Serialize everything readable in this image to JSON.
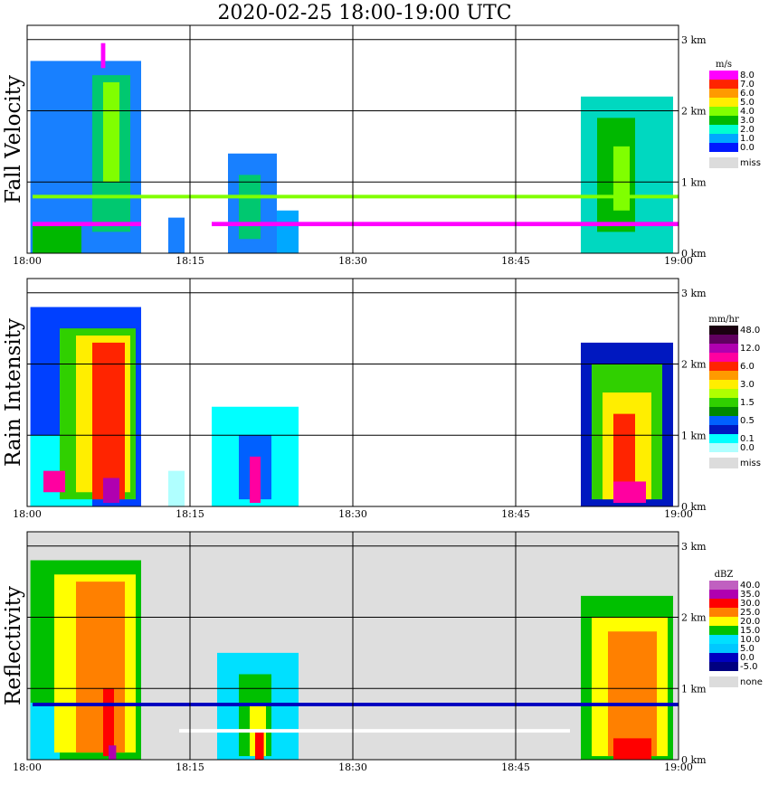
{
  "title": "2020-02-25   18:00-19:00 UTC",
  "chart_data": {
    "type": "heatmap",
    "time_ticks": [
      "18:00",
      "18:15",
      "18:30",
      "18:45",
      "19:00"
    ],
    "height_ticks": [
      "0 km",
      "1 km",
      "2 km",
      "3 km"
    ],
    "height_range_km": [
      0,
      3.2
    ],
    "time_range_min": [
      0,
      60
    ],
    "panels": [
      {
        "label": "Fall Velocity",
        "unit": "m/s",
        "colorbar": [
          {
            "label": "8.0",
            "color": "#ff00ff"
          },
          {
            "label": "7.0",
            "color": "#ff2400"
          },
          {
            "label": "6.0",
            "color": "#ff9a00"
          },
          {
            "label": "5.0",
            "color": "#ffee00"
          },
          {
            "label": "4.0",
            "color": "#80ff00"
          },
          {
            "label": "3.0",
            "color": "#00b800"
          },
          {
            "label": "2.0",
            "color": "#00ffd0"
          },
          {
            "label": "1.0",
            "color": "#00a8ff"
          },
          {
            "label": "0.0",
            "color": "#0018ff"
          }
        ],
        "missing_label": "miss",
        "background": "#ffffff",
        "cells": [
          {
            "t0": 0.3,
            "t1": 10.5,
            "h0": 0.0,
            "h1": 2.7,
            "color": "#1880ff"
          },
          {
            "t0": 6.0,
            "t1": 9.5,
            "h0": 0.3,
            "h1": 2.5,
            "color": "#00c870"
          },
          {
            "t0": 7.0,
            "t1": 8.5,
            "h0": 1.0,
            "h1": 2.4,
            "color": "#80ff00"
          },
          {
            "t0": 0.5,
            "t1": 5.0,
            "h0": 0.0,
            "h1": 0.4,
            "color": "#00b800"
          },
          {
            "t0": 6.8,
            "t1": 7.2,
            "h0": 2.6,
            "h1": 2.95,
            "color": "#ff00ff"
          },
          {
            "t0": 13.0,
            "t1": 14.5,
            "h0": 0.0,
            "h1": 0.5,
            "color": "#1880ff"
          },
          {
            "t0": 18.5,
            "t1": 23.0,
            "h0": 0.0,
            "h1": 1.4,
            "color": "#1880ff"
          },
          {
            "t0": 19.5,
            "t1": 21.5,
            "h0": 0.2,
            "h1": 1.1,
            "color": "#00c870"
          },
          {
            "t0": 23.0,
            "t1": 25.0,
            "h0": 0.0,
            "h1": 0.6,
            "color": "#00a8ff"
          },
          {
            "t0": 51.0,
            "t1": 59.5,
            "h0": 0.0,
            "h1": 2.2,
            "color": "#00d8c0"
          },
          {
            "t0": 52.5,
            "t1": 56.0,
            "h0": 0.3,
            "h1": 1.9,
            "color": "#00b800"
          },
          {
            "t0": 54.0,
            "t1": 55.5,
            "h0": 0.6,
            "h1": 1.5,
            "color": "#80ff00"
          },
          {
            "t0": 0.5,
            "t1": 10.5,
            "h0": 0.38,
            "h1": 0.44,
            "color": "#ff00ff"
          },
          {
            "t0": 17.0,
            "t1": 60.0,
            "h0": 0.38,
            "h1": 0.44,
            "color": "#ff00ff"
          },
          {
            "t0": 0.5,
            "t1": 60.0,
            "h0": 0.77,
            "h1": 0.82,
            "color": "#80ff00"
          }
        ]
      },
      {
        "label": "Rain Intensity",
        "unit": "mm/hr",
        "colorbar": [
          {
            "label": "48.0",
            "color": "#1a0010"
          },
          {
            "label": "",
            "color": "#600060"
          },
          {
            "label": "12.0",
            "color": "#b000b0"
          },
          {
            "label": "",
            "color": "#ff00a0"
          },
          {
            "label": "6.0",
            "color": "#ff2400"
          },
          {
            "label": "",
            "color": "#ff9a00"
          },
          {
            "label": "3.0",
            "color": "#ffee00"
          },
          {
            "label": "",
            "color": "#b0ff00"
          },
          {
            "label": "1.5",
            "color": "#30d000"
          },
          {
            "label": "",
            "color": "#008800"
          },
          {
            "label": "0.5",
            "color": "#0060ff"
          },
          {
            "label": "",
            "color": "#0018c0"
          },
          {
            "label": "0.1",
            "color": "#00ffff"
          },
          {
            "label": "0.0",
            "color": "#b0ffff"
          }
        ],
        "missing_label": "miss",
        "background": "#ffffff",
        "cells": [
          {
            "t0": 0.3,
            "t1": 10.5,
            "h0": 0.0,
            "h1": 2.8,
            "color": "#0040ff"
          },
          {
            "t0": 0.3,
            "t1": 6.0,
            "h0": 0.0,
            "h1": 1.0,
            "color": "#00ffff"
          },
          {
            "t0": 3.0,
            "t1": 10.0,
            "h0": 0.1,
            "h1": 2.5,
            "color": "#30d000"
          },
          {
            "t0": 4.5,
            "t1": 9.5,
            "h0": 0.2,
            "h1": 2.4,
            "color": "#ffee00"
          },
          {
            "t0": 6.0,
            "t1": 9.0,
            "h0": 0.1,
            "h1": 2.3,
            "color": "#ff2400"
          },
          {
            "t0": 7.0,
            "t1": 8.5,
            "h0": 0.05,
            "h1": 0.4,
            "color": "#b000b0"
          },
          {
            "t0": 1.5,
            "t1": 3.5,
            "h0": 0.2,
            "h1": 0.5,
            "color": "#ff00a0"
          },
          {
            "t0": 13.0,
            "t1": 14.5,
            "h0": 0.0,
            "h1": 0.5,
            "color": "#b0ffff"
          },
          {
            "t0": 17.0,
            "t1": 25.0,
            "h0": 0.0,
            "h1": 1.4,
            "color": "#00ffff"
          },
          {
            "t0": 19.5,
            "t1": 22.5,
            "h0": 0.1,
            "h1": 1.0,
            "color": "#0060ff"
          },
          {
            "t0": 20.5,
            "t1": 21.5,
            "h0": 0.05,
            "h1": 0.7,
            "color": "#ff00a0"
          },
          {
            "t0": 51.0,
            "t1": 59.5,
            "h0": 0.0,
            "h1": 2.3,
            "color": "#0018c0"
          },
          {
            "t0": 52.0,
            "t1": 58.5,
            "h0": 0.1,
            "h1": 2.0,
            "color": "#30d000"
          },
          {
            "t0": 53.0,
            "t1": 57.5,
            "h0": 0.1,
            "h1": 1.6,
            "color": "#ffee00"
          },
          {
            "t0": 54.0,
            "t1": 56.0,
            "h0": 0.1,
            "h1": 1.3,
            "color": "#ff2400"
          },
          {
            "t0": 54.0,
            "t1": 57.0,
            "h0": 0.05,
            "h1": 0.35,
            "color": "#ff00a0"
          }
        ]
      },
      {
        "label": "Reflectivity",
        "unit": "dBZ",
        "colorbar": [
          {
            "label": "40.0",
            "color": "#c060c0"
          },
          {
            "label": "35.0",
            "color": "#b000b0"
          },
          {
            "label": "30.0",
            "color": "#ff0000"
          },
          {
            "label": "25.0",
            "color": "#ff8000"
          },
          {
            "label": "20.0",
            "color": "#ffff00"
          },
          {
            "label": "15.0",
            "color": "#00c000"
          },
          {
            "label": "10.0",
            "color": "#00e0ff"
          },
          {
            "label": "5.0",
            "color": "#00c8ff"
          },
          {
            "label": "0.0",
            "color": "#0000c0"
          },
          {
            "label": "-5.0",
            "color": "#000080"
          }
        ],
        "missing_label": "none",
        "background": "#dedede",
        "cells": [
          {
            "t0": 0.3,
            "t1": 10.5,
            "h0": 0.0,
            "h1": 2.8,
            "color": "#00c000"
          },
          {
            "t0": 0.3,
            "t1": 3.0,
            "h0": 0.0,
            "h1": 0.8,
            "color": "#00e0ff"
          },
          {
            "t0": 2.5,
            "t1": 10.0,
            "h0": 0.1,
            "h1": 2.6,
            "color": "#ffff00"
          },
          {
            "t0": 4.5,
            "t1": 9.0,
            "h0": 0.1,
            "h1": 2.5,
            "color": "#ff8000"
          },
          {
            "t0": 7.0,
            "t1": 8.0,
            "h0": 0.05,
            "h1": 1.0,
            "color": "#ff0000"
          },
          {
            "t0": 7.5,
            "t1": 8.2,
            "h0": 0.0,
            "h1": 0.2,
            "color": "#b000b0"
          },
          {
            "t0": 17.5,
            "t1": 25.0,
            "h0": 0.0,
            "h1": 1.5,
            "color": "#00e0ff"
          },
          {
            "t0": 19.5,
            "t1": 22.5,
            "h0": 0.05,
            "h1": 1.2,
            "color": "#00c000"
          },
          {
            "t0": 20.5,
            "t1": 22.0,
            "h0": 0.05,
            "h1": 0.8,
            "color": "#ffff00"
          },
          {
            "t0": 21.0,
            "t1": 21.8,
            "h0": 0.0,
            "h1": 0.4,
            "color": "#ff0000"
          },
          {
            "t0": 51.0,
            "t1": 59.5,
            "h0": 0.0,
            "h1": 2.3,
            "color": "#00c000"
          },
          {
            "t0": 52.0,
            "t1": 59.0,
            "h0": 0.05,
            "h1": 2.0,
            "color": "#ffff00"
          },
          {
            "t0": 53.5,
            "t1": 58.0,
            "h0": 0.05,
            "h1": 1.8,
            "color": "#ff8000"
          },
          {
            "t0": 54.0,
            "t1": 57.5,
            "h0": 0.0,
            "h1": 0.3,
            "color": "#ff0000"
          },
          {
            "t0": 0.5,
            "t1": 60.0,
            "h0": 0.75,
            "h1": 0.8,
            "color": "#0000c0"
          },
          {
            "t0": 14.0,
            "t1": 50.0,
            "h0": 0.38,
            "h1": 0.43,
            "color": "#ffffff"
          }
        ]
      }
    ]
  }
}
